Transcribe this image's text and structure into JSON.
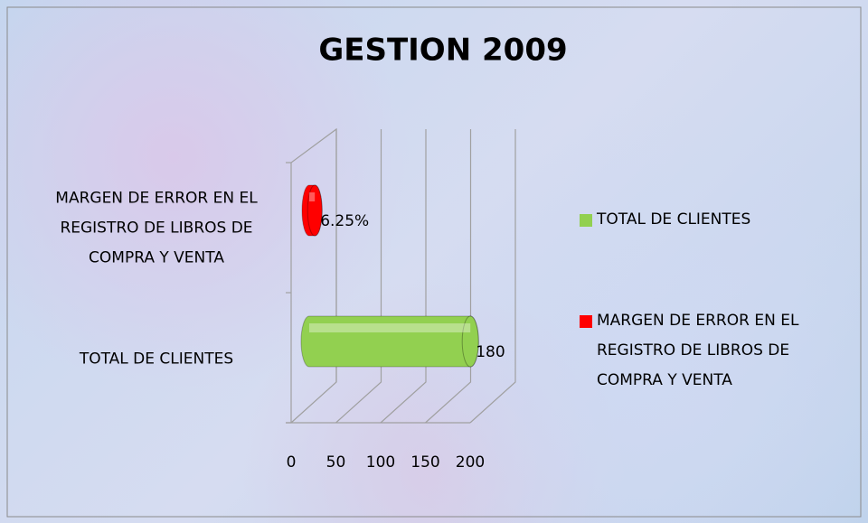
{
  "chart_data": {
    "type": "bar3d_horizontal",
    "title": "GESTION 2009",
    "categories": [
      "TOTAL DE CLIENTES",
      "MARGEN DE ERROR EN EL REGISTRO DE LIBROS DE COMPRA Y VENTA"
    ],
    "values": [
      180,
      6.25
    ],
    "value_labels": [
      "180",
      "6.25%"
    ],
    "colors": [
      "#92d050",
      "#ff0000"
    ],
    "xlim": [
      0,
      200
    ],
    "xticks": [
      0,
      50,
      100,
      150,
      200
    ],
    "grid": true,
    "legend": "right"
  }
}
